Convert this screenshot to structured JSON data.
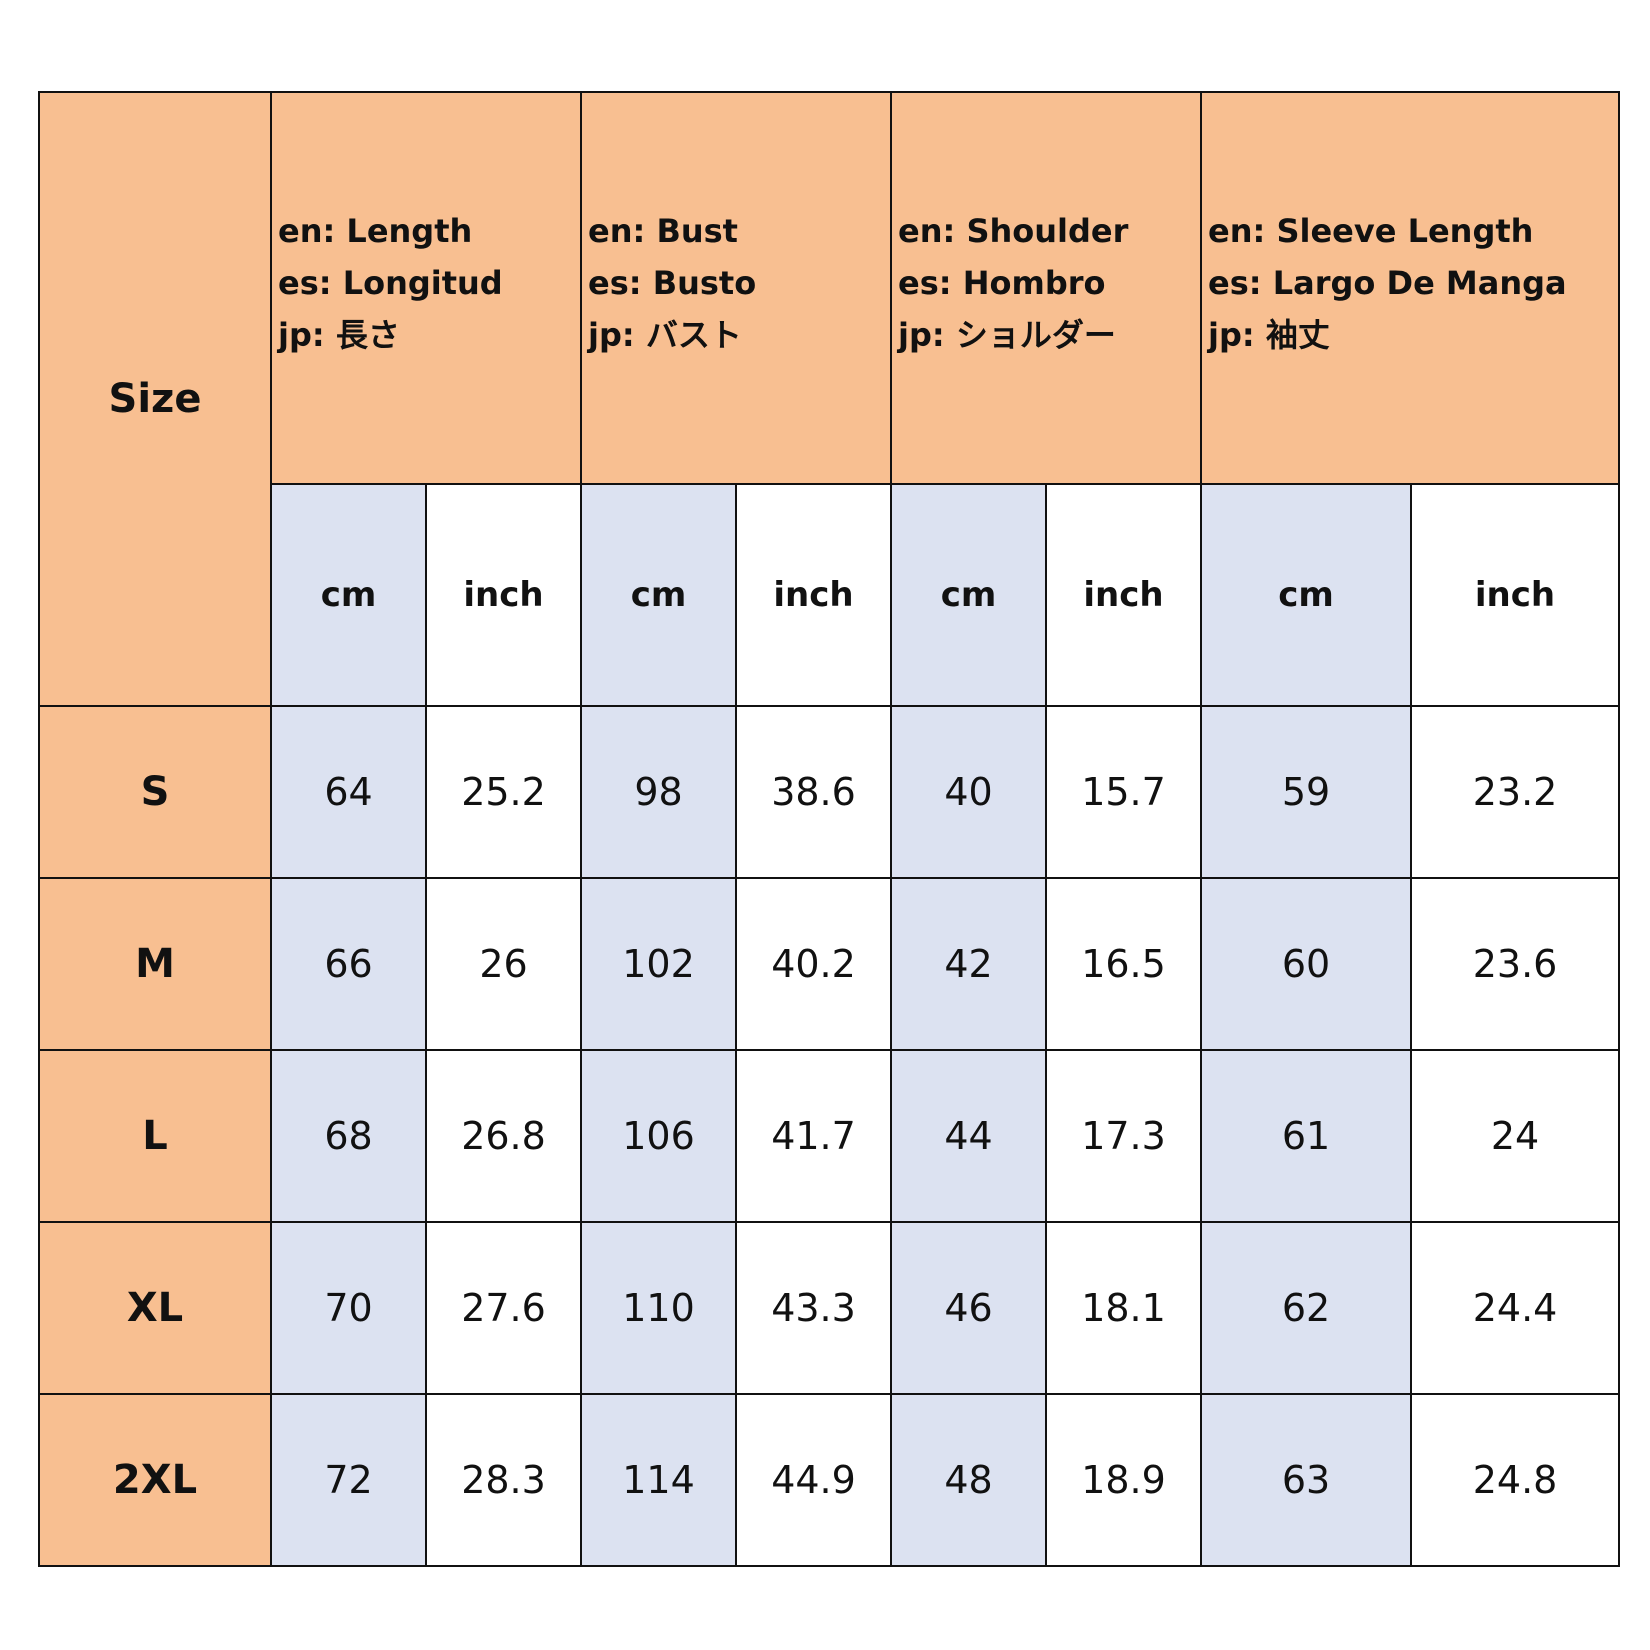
{
  "size_chart": {
    "size_label": "Size",
    "measures": [
      {
        "en": "en: Length",
        "es": "es: Longitud",
        "jp": "jp: 長さ"
      },
      {
        "en": "en: Bust",
        "es": "es: Busto",
        "jp": "jp: バスト"
      },
      {
        "en": "en: Shoulder",
        "es": "es: Hombro",
        "jp": "jp: ショルダー"
      },
      {
        "en": "en: Sleeve Length",
        "es": "es: Largo De Manga",
        "jp": "jp: 袖丈"
      }
    ],
    "units": {
      "cm": "cm",
      "inch": "inch"
    },
    "rows": [
      {
        "size": "S",
        "values": [
          "64",
          "25.2",
          "98",
          "38.6",
          "40",
          "15.7",
          "59",
          "23.2"
        ]
      },
      {
        "size": "M",
        "values": [
          "66",
          "26",
          "102",
          "40.2",
          "42",
          "16.5",
          "60",
          "23.6"
        ]
      },
      {
        "size": "L",
        "values": [
          "68",
          "26.8",
          "106",
          "41.7",
          "44",
          "17.3",
          "61",
          "24"
        ]
      },
      {
        "size": "XL",
        "values": [
          "70",
          "27.6",
          "110",
          "43.3",
          "46",
          "18.1",
          "62",
          "24.4"
        ]
      },
      {
        "size": "2XL",
        "values": [
          "72",
          "28.3",
          "114",
          "44.9",
          "48",
          "18.9",
          "63",
          "24.8"
        ]
      }
    ],
    "colors": {
      "header_bg": "#f8bf91",
      "cm_bg": "#dce2f1",
      "inch_bg": "#ffffff",
      "border": "#111111"
    }
  }
}
